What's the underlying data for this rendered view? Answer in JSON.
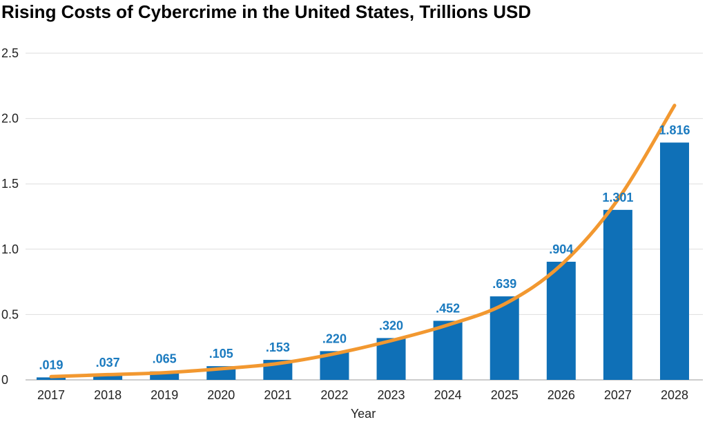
{
  "chart_data": {
    "type": "bar",
    "title": "Rising Costs of Cybercrime in the United States, Trillions USD",
    "xlabel": "Year",
    "ylabel": "",
    "ylim": [
      0,
      2.5
    ],
    "yticks": [
      "0",
      "0.5",
      "1.0",
      "1.5",
      "2.0",
      "2.5"
    ],
    "grid": true,
    "categories": [
      "2017",
      "2018",
      "2019",
      "2020",
      "2021",
      "2022",
      "2023",
      "2024",
      "2025",
      "2026",
      "2027",
      "2028"
    ],
    "series": [
      {
        "type": "bar",
        "values": [
          0.019,
          0.037,
          0.065,
          0.105,
          0.153,
          0.22,
          0.32,
          0.452,
          0.639,
          0.904,
          1.301,
          1.816
        ],
        "labels": [
          ".019",
          ".037",
          ".065",
          ".105",
          ".153",
          ".220",
          ".320",
          ".452",
          ".639",
          ".904",
          "1.301",
          "1.816"
        ]
      },
      {
        "type": "line",
        "values": [
          0.025,
          0.04,
          0.055,
          0.085,
          0.125,
          0.2,
          0.3,
          0.42,
          0.58,
          0.88,
          1.38,
          2.1
        ]
      }
    ],
    "colors": {
      "bar": "#0f70b7",
      "label": "#1a7abf",
      "trend": "#f29830",
      "grid": "#dddddd"
    }
  }
}
